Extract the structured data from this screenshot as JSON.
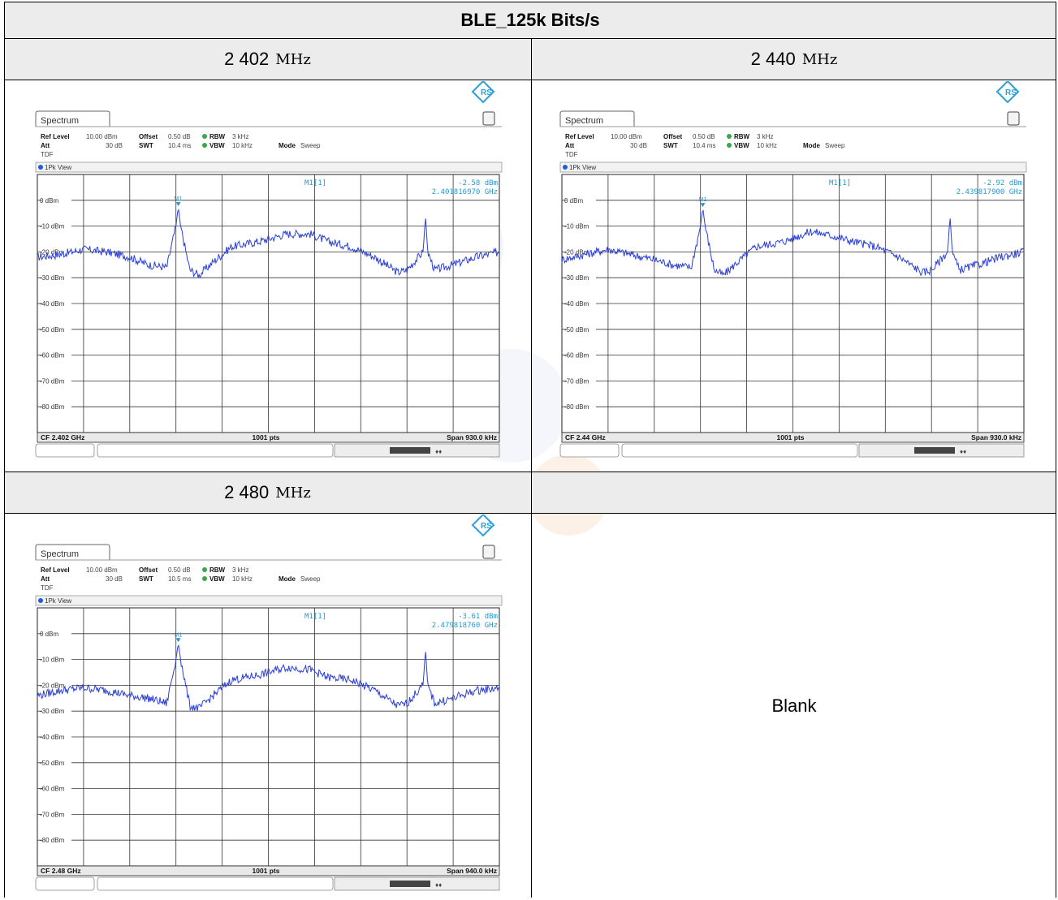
{
  "table": {
    "title": "BLE_125k Bits/s",
    "blank_label": "Blank",
    "unit": "MHz"
  },
  "panels": [
    {
      "freq_label": "2 402",
      "tab": "Spectrum",
      "ref_level_label": "Ref Level",
      "ref_level": "10.00 dBm",
      "att_label": "Att",
      "att": "30 dB",
      "offset_label": "Offset",
      "offset": "0.50 dB",
      "swt_label": "SWT",
      "swt": "10.4 ms",
      "rbw_label": "RBW",
      "rbw": "3 kHz",
      "vbw_label": "VBW",
      "vbw": "10 kHz",
      "mode_label": "Mode",
      "mode": "Sweep",
      "tdf": "TDF",
      "view": "1Pk View",
      "marker_name": "M1[1]",
      "marker_level": "-2.58 dBm",
      "marker_freq": "2.401816970 GHz",
      "marker_tag": "M1",
      "cf": "CF 2.402 GHz",
      "pts": "1001 pts",
      "span": "Span 930.0 kHz"
    },
    {
      "freq_label": "2 440",
      "tab": "Spectrum",
      "ref_level_label": "Ref Level",
      "ref_level": "10.00 dBm",
      "att_label": "Att",
      "att": "30 dB",
      "offset_label": "Offset",
      "offset": "0.50 dB",
      "swt_label": "SWT",
      "swt": "10.4 ms",
      "rbw_label": "RBW",
      "rbw": "3 kHz",
      "vbw_label": "VBW",
      "vbw": "10 kHz",
      "mode_label": "Mode",
      "mode": "Sweep",
      "tdf": "TDF",
      "view": "1Pk View",
      "marker_name": "M1[1]",
      "marker_level": "-2.92 dBm",
      "marker_freq": "2.439817900 GHz",
      "marker_tag": "M1",
      "cf": "CF 2.44 GHz",
      "pts": "1001 pts",
      "span": "Span 930.0 kHz"
    },
    {
      "freq_label": "2 480",
      "tab": "Spectrum",
      "ref_level_label": "Ref Level",
      "ref_level": "10.00 dBm",
      "att_label": "Att",
      "att": "30 dB",
      "offset_label": "Offset",
      "offset": "0.50 dB",
      "swt_label": "SWT",
      "swt": "10.5 ms",
      "rbw_label": "RBW",
      "rbw": "3 kHz",
      "vbw_label": "VBW",
      "vbw": "10 kHz",
      "mode_label": "Mode",
      "mode": "Sweep",
      "tdf": "TDF",
      "view": "1Pk View",
      "marker_name": "M1[1]",
      "marker_level": "-3.61 dBm",
      "marker_freq": "2.479818760 GHz",
      "marker_tag": "M1",
      "cf": "CF 2.48 GHz",
      "pts": "1001 pts",
      "span": "Span 940.0 kHz"
    }
  ],
  "chart_data": [
    {
      "type": "line",
      "ylim": [
        -90,
        10
      ],
      "xlim": [
        0,
        10
      ],
      "y_ticks": [
        0,
        -10,
        -20,
        -30,
        -40,
        -50,
        -60,
        -70,
        -80
      ],
      "y_tick_labels": [
        "0 dBm",
        "-10 dBm",
        "-20 dBm",
        "-30 dBm",
        "-40 dBm",
        "-50 dBm",
        "-60 dBm",
        "-70 dBm",
        "-80 dBm"
      ],
      "grid": true,
      "series": [
        {
          "x": [
            0,
            0.5,
            1.0,
            1.5,
            2.0,
            2.4,
            2.8,
            3.0,
            3.05,
            3.1,
            3.3,
            3.5,
            3.8,
            4.2,
            4.8,
            5.4,
            5.9,
            6.3,
            6.8,
            7.3,
            7.8,
            8.0,
            8.35,
            8.4,
            8.45,
            8.6,
            9.0,
            9.5,
            10.0
          ],
          "y": [
            -22,
            -21,
            -19,
            -20,
            -22,
            -25,
            -26,
            -10,
            -2.58,
            -10,
            -27,
            -29,
            -24,
            -18,
            -16,
            -13,
            -13,
            -16,
            -18,
            -22,
            -28,
            -27,
            -20,
            -6,
            -20,
            -27,
            -25,
            -22,
            -20
          ]
        }
      ],
      "marker": {
        "x": 3.05,
        "y": -2.58
      }
    },
    {
      "type": "line",
      "ylim": [
        -90,
        10
      ],
      "xlim": [
        0,
        10
      ],
      "y_ticks": [
        0,
        -10,
        -20,
        -30,
        -40,
        -50,
        -60,
        -70,
        -80
      ],
      "y_tick_labels": [
        "0 dBm",
        "-10 dBm",
        "-20 dBm",
        "-30 dBm",
        "-40 dBm",
        "-50 dBm",
        "-60 dBm",
        "-70 dBm",
        "-80 dBm"
      ],
      "grid": true,
      "series": [
        {
          "x": [
            0,
            0.5,
            1.0,
            1.5,
            2.0,
            2.4,
            2.8,
            3.0,
            3.05,
            3.1,
            3.3,
            3.5,
            3.8,
            4.2,
            4.8,
            5.4,
            5.9,
            6.3,
            6.8,
            7.3,
            7.8,
            8.0,
            8.35,
            8.4,
            8.45,
            8.6,
            9.0,
            9.5,
            10.0
          ],
          "y": [
            -23,
            -21,
            -19,
            -21,
            -23,
            -25,
            -26,
            -10,
            -2.92,
            -10,
            -27,
            -29,
            -24,
            -18,
            -16,
            -12,
            -14,
            -16,
            -18,
            -22,
            -28,
            -27,
            -20,
            -6,
            -20,
            -27,
            -25,
            -22,
            -20
          ]
        }
      ],
      "marker": {
        "x": 3.05,
        "y": -2.92
      }
    },
    {
      "type": "line",
      "ylim": [
        -90,
        10
      ],
      "xlim": [
        0,
        10
      ],
      "y_ticks": [
        0,
        -10,
        -20,
        -30,
        -40,
        -50,
        -60,
        -70,
        -80
      ],
      "y_tick_labels": [
        "0 dBm",
        "-10 dBm",
        "-20 dBm",
        "-30 dBm",
        "-40 dBm",
        "-50 dBm",
        "-60 dBm",
        "-70 dBm",
        "-80 dBm"
      ],
      "grid": true,
      "series": [
        {
          "x": [
            0,
            0.5,
            1.0,
            1.5,
            2.0,
            2.4,
            2.8,
            3.0,
            3.05,
            3.1,
            3.3,
            3.5,
            3.8,
            4.2,
            4.8,
            5.4,
            5.9,
            6.3,
            6.8,
            7.3,
            7.8,
            8.0,
            8.35,
            8.4,
            8.45,
            8.6,
            9.0,
            9.5,
            10.0
          ],
          "y": [
            -24,
            -22,
            -21,
            -22,
            -24,
            -25,
            -27,
            -10,
            -3.61,
            -10,
            -28,
            -29,
            -24,
            -18,
            -16,
            -13,
            -14,
            -17,
            -18,
            -22,
            -28,
            -27,
            -20,
            -6,
            -20,
            -27,
            -25,
            -22,
            -21
          ]
        }
      ],
      "marker": {
        "x": 3.05,
        "y": -3.61
      }
    }
  ]
}
